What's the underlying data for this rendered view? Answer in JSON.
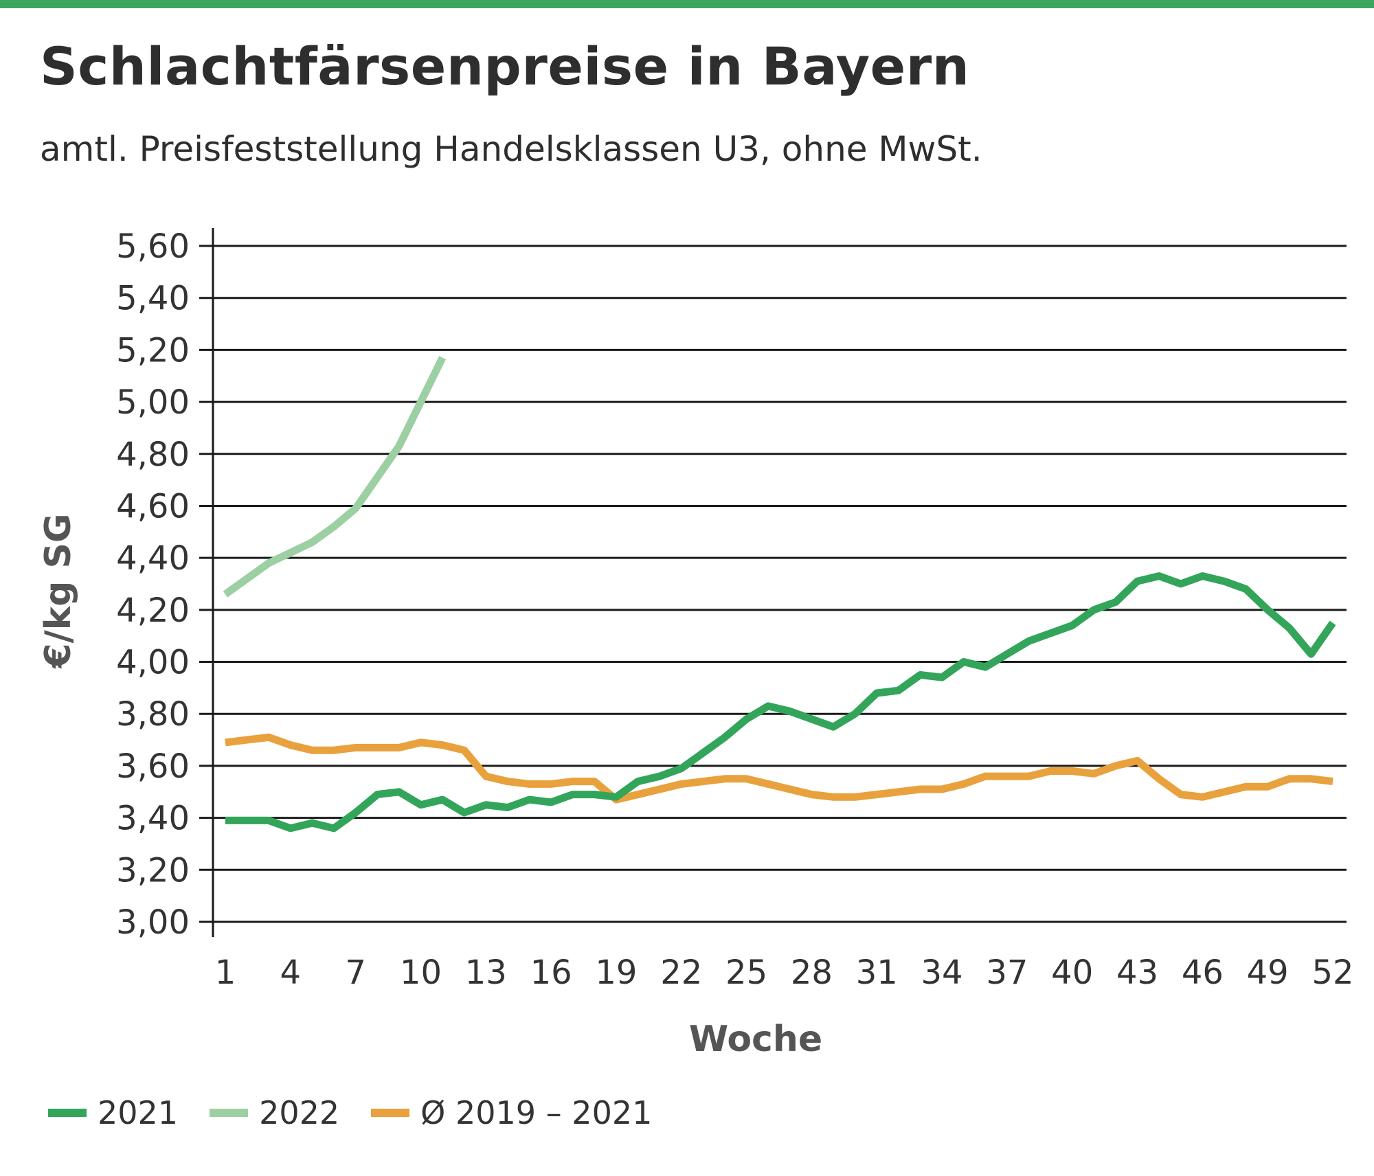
{
  "header": {
    "title": "Schlachtfärsenpreise in Bayern",
    "subtitle": "amtl. Preisfeststellung Handelsklassen U3, ohne MwSt."
  },
  "colors": {
    "topbar": "#3aa660",
    "series_2021": "#33a55b",
    "series_2022": "#9ccfa2",
    "series_avg": "#e8a13c",
    "grid": "#1a1a1a",
    "axis_text": "#333333",
    "axis_title": "#555555"
  },
  "chart_data": {
    "type": "line",
    "title": "Schlachtfärsenpreise in Bayern",
    "subtitle": "amtl. Preisfeststellung Handelsklassen U3, ohne MwSt.",
    "xlabel": "Woche",
    "ylabel": "€/kg SG",
    "xlim": [
      1,
      52
    ],
    "ylim": [
      3.0,
      5.6
    ],
    "x_ticks": [
      "1",
      "4",
      "7",
      "10",
      "13",
      "16",
      "19",
      "22",
      "25",
      "28",
      "31",
      "34",
      "37",
      "40",
      "43",
      "46",
      "49",
      "52"
    ],
    "y_ticks": [
      "3,00",
      "3,20",
      "3,40",
      "3,60",
      "3,80",
      "4,00",
      "4,20",
      "4,40",
      "4,60",
      "4,80",
      "5,00",
      "5,20",
      "5,40",
      "5,60"
    ],
    "grid": true,
    "legend_position": "bottom-left",
    "series": [
      {
        "name": "2021",
        "color": "#33a55b",
        "x": [
          1,
          2,
          3,
          4,
          5,
          6,
          7,
          8,
          9,
          10,
          11,
          12,
          13,
          14,
          15,
          16,
          17,
          18,
          19,
          20,
          21,
          22,
          23,
          24,
          25,
          26,
          27,
          28,
          29,
          30,
          31,
          32,
          33,
          34,
          35,
          36,
          37,
          38,
          39,
          40,
          41,
          42,
          43,
          44,
          45,
          46,
          47,
          48,
          49,
          50,
          51,
          52
        ],
        "values": [
          3.39,
          3.39,
          3.39,
          3.36,
          3.38,
          3.36,
          3.42,
          3.49,
          3.5,
          3.45,
          3.47,
          3.42,
          3.45,
          3.44,
          3.47,
          3.46,
          3.49,
          3.49,
          3.48,
          3.54,
          3.56,
          3.59,
          3.65,
          3.71,
          3.78,
          3.83,
          3.81,
          3.78,
          3.75,
          3.8,
          3.88,
          3.89,
          3.95,
          3.94,
          4.0,
          3.98,
          4.03,
          4.08,
          4.11,
          4.14,
          4.2,
          4.23,
          4.31,
          4.33,
          4.3,
          4.33,
          4.31,
          4.28,
          4.2,
          4.13,
          4.03,
          4.15
        ]
      },
      {
        "name": "2022",
        "color": "#9ccfa2",
        "x": [
          1,
          2,
          3,
          4,
          5,
          6,
          7,
          8,
          9,
          10,
          11
        ],
        "values": [
          4.26,
          4.32,
          4.38,
          4.42,
          4.46,
          4.52,
          4.59,
          4.71,
          4.83,
          5.0,
          5.17
        ]
      },
      {
        "name": "Ø 2019 – 2021",
        "color": "#e8a13c",
        "x": [
          1,
          2,
          3,
          4,
          5,
          6,
          7,
          8,
          9,
          10,
          11,
          12,
          13,
          14,
          15,
          16,
          17,
          18,
          19,
          20,
          21,
          22,
          23,
          24,
          25,
          26,
          27,
          28,
          29,
          30,
          31,
          32,
          33,
          34,
          35,
          36,
          37,
          38,
          39,
          40,
          41,
          42,
          43,
          44,
          45,
          46,
          47,
          48,
          49,
          50,
          51,
          52
        ],
        "values": [
          3.69,
          3.7,
          3.71,
          3.68,
          3.66,
          3.66,
          3.67,
          3.67,
          3.67,
          3.69,
          3.68,
          3.66,
          3.56,
          3.54,
          3.53,
          3.53,
          3.54,
          3.54,
          3.47,
          3.49,
          3.51,
          3.53,
          3.54,
          3.55,
          3.55,
          3.53,
          3.51,
          3.49,
          3.48,
          3.48,
          3.49,
          3.5,
          3.51,
          3.51,
          3.53,
          3.56,
          3.56,
          3.56,
          3.58,
          3.58,
          3.57,
          3.6,
          3.62,
          3.55,
          3.49,
          3.48,
          3.5,
          3.52,
          3.52,
          3.55,
          3.55,
          3.54
        ]
      }
    ]
  }
}
